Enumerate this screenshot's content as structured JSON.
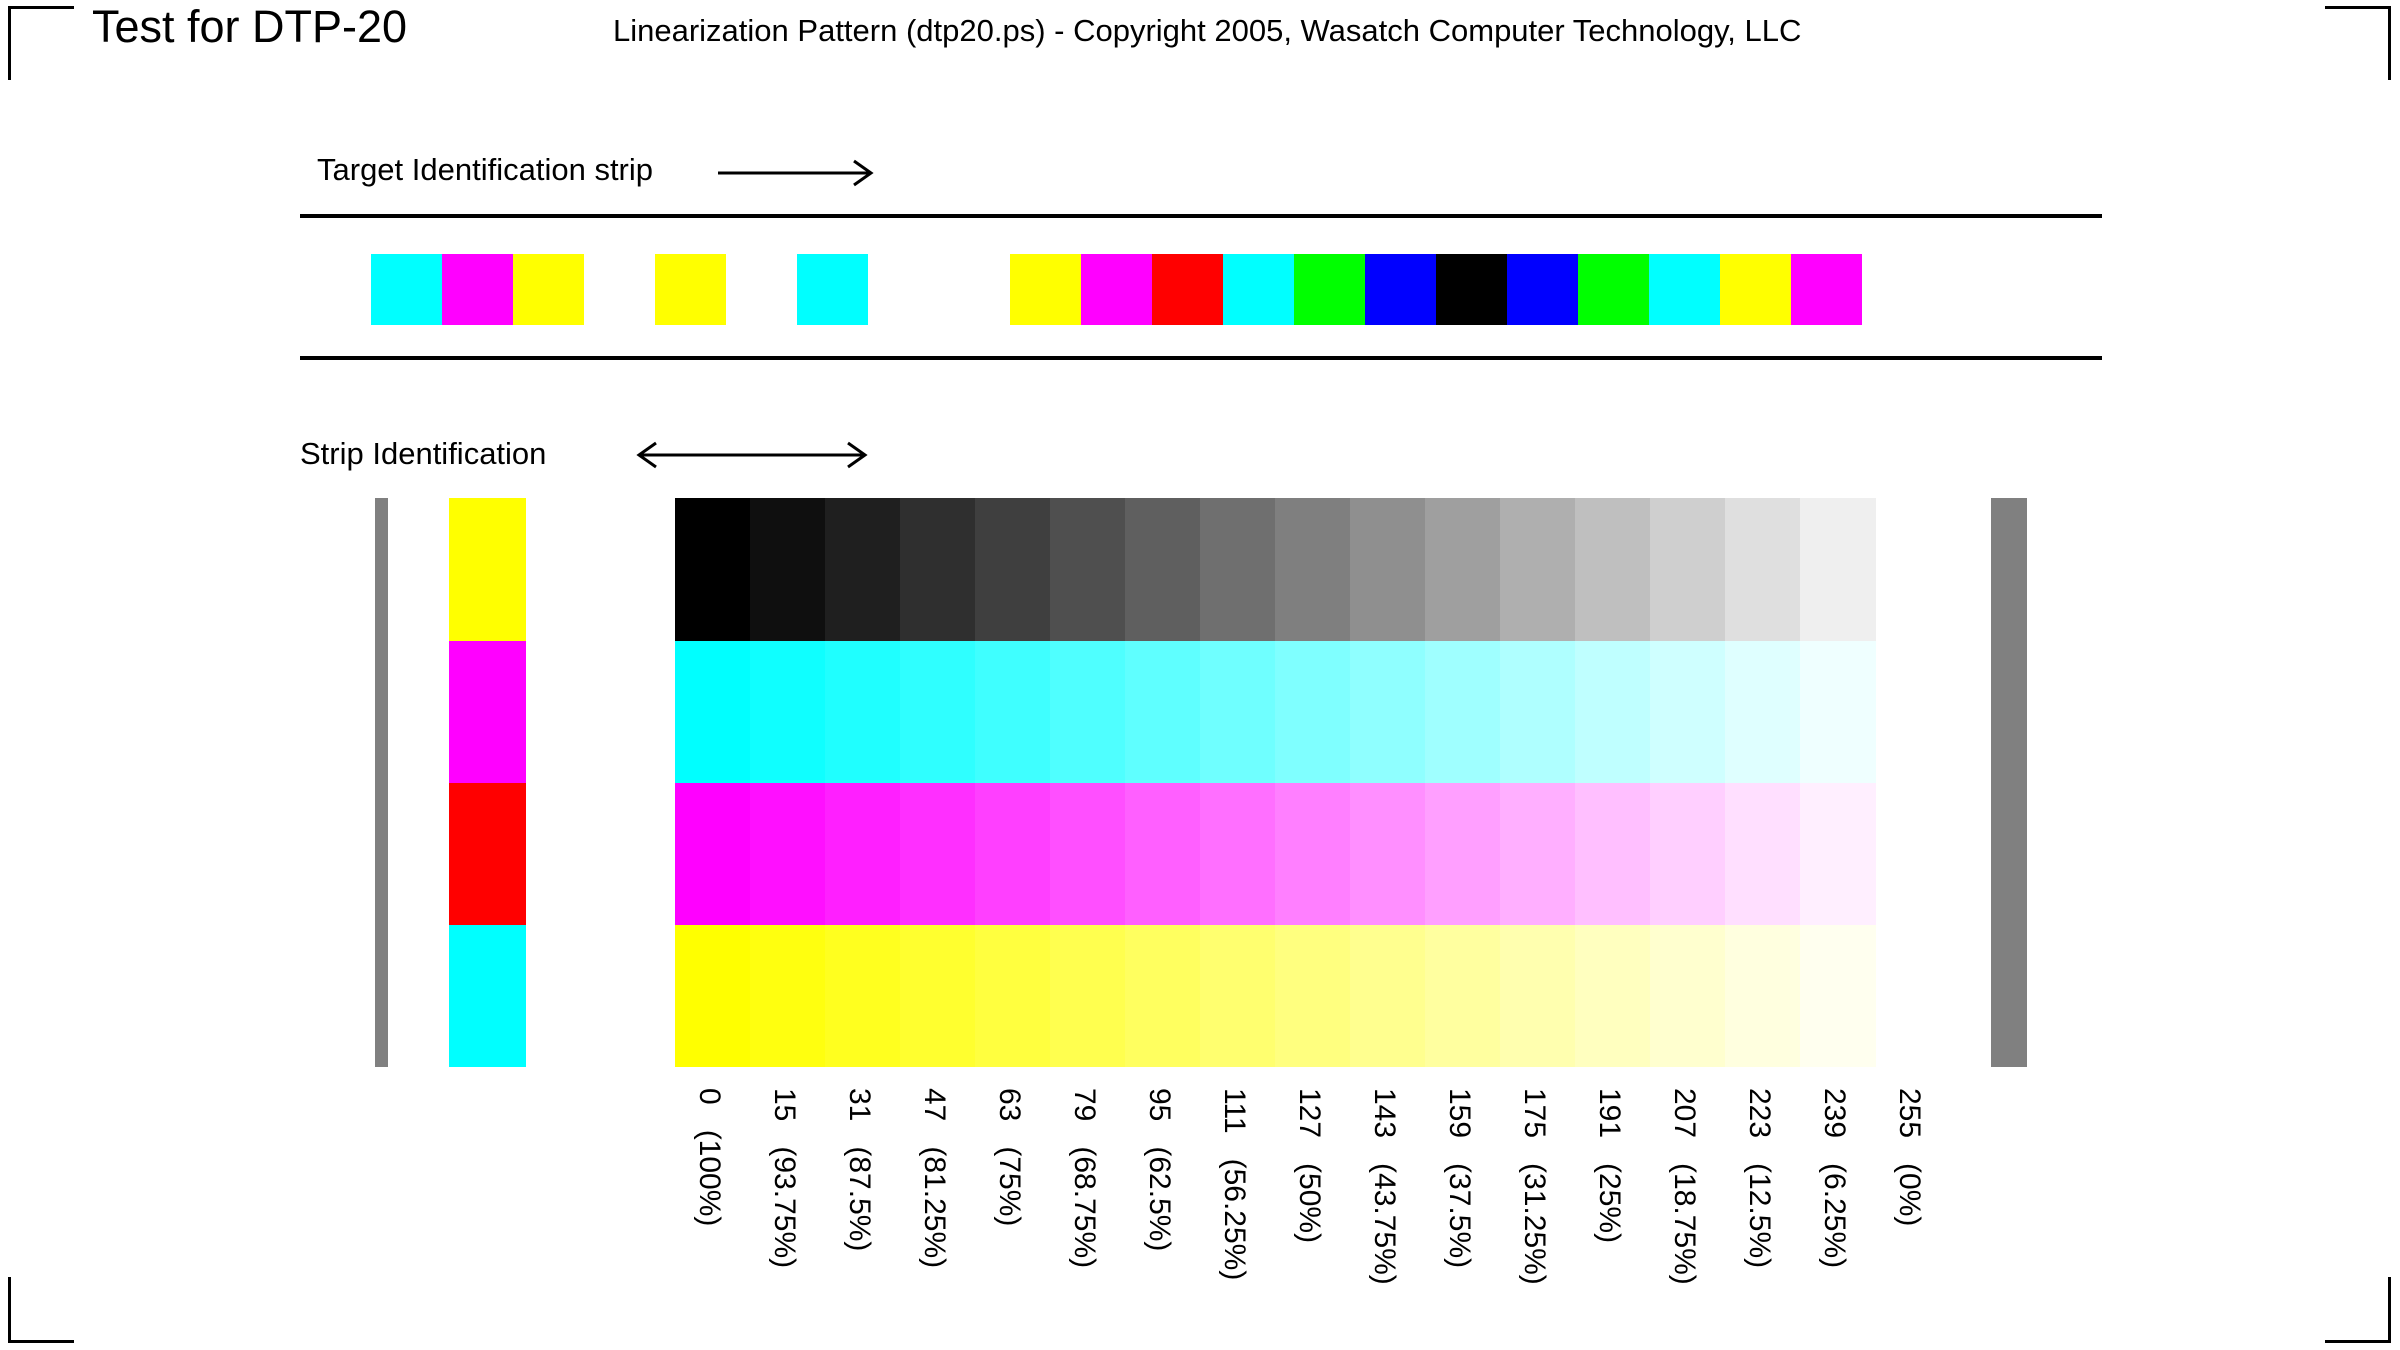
{
  "header": {
    "title": "Test for DTP-20",
    "copyright": "Linearization Pattern (dtp20.ps) - Copyright 2005, Wasatch Computer Technology, LLC"
  },
  "target_strip": {
    "label": "Target Identification strip",
    "colors": [
      "#00ffff",
      "#ff00ff",
      "#ffff00",
      "",
      "#ffff00",
      "",
      "#00ffff",
      "",
      "",
      "#ffff00",
      "#ff00ff",
      "#ff0000",
      "#00ffff",
      "#00ff00",
      "#0000ff",
      "#000000",
      "#0000ff",
      "#00ff00",
      "#00ffff",
      "#ffff00",
      "#ff00ff"
    ]
  },
  "strip_identification": {
    "label": "Strip Identification",
    "id_colors": [
      "#ffff00",
      "#ff00ff",
      "#ff0000",
      "#00ffff"
    ],
    "bar_color": "#808080"
  },
  "ramp": {
    "levels": [
      0,
      15,
      31,
      47,
      63,
      79,
      95,
      111,
      127,
      143,
      159,
      175,
      191,
      207,
      223,
      239,
      255
    ],
    "labels": [
      "0   (100%)",
      "15   (93.75%)",
      "31   (87.5%)",
      "47   (81.25%)",
      "63   (75%)",
      "79   (68.75%)",
      "95   (62.5%)",
      "111   (56.25%)",
      "127   (50%)",
      "143   (43.75%)",
      "159   (37.5%)",
      "175   (31.25%)",
      "191   (25%)",
      "207   (18.75%)",
      "223   (12.5%)",
      "239   (6.25%)",
      "255   (0%)"
    ],
    "rows": [
      "black",
      "cyan",
      "magenta",
      "yellow"
    ]
  }
}
